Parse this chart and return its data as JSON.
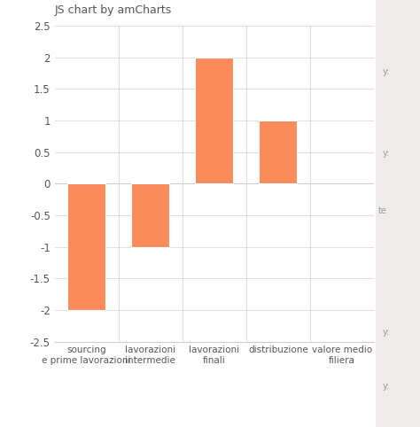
{
  "categories": [
    "sourcing\ne prime lavorazioni",
    "lavorazioni\nintermedie",
    "lavorazioni\nfinali",
    "distribuzione",
    "valore medio\nfiliera"
  ],
  "values": [
    -2.0,
    -1.0,
    2.0,
    1.0,
    0.0
  ],
  "bar_color": "#f98c5a",
  "bar_edge_color": "#ffffff",
  "background_color": "#ffffff",
  "title": "JS chart by amCharts",
  "title_fontsize": 9,
  "ylim": [
    -2.5,
    2.5
  ],
  "yticks": [
    -2.5,
    -2.0,
    -1.5,
    -1.0,
    -0.5,
    0.0,
    0.5,
    1.0,
    1.5,
    2.0,
    2.5
  ],
  "grid_color": "#e0e0e0",
  "tick_fontsize": 8.5,
  "label_fontsize": 7.5,
  "right_panel_color": "#f0ecec",
  "right_panel_text_color": "#999999",
  "axis_color": "#cccccc",
  "text_color": "#555555"
}
